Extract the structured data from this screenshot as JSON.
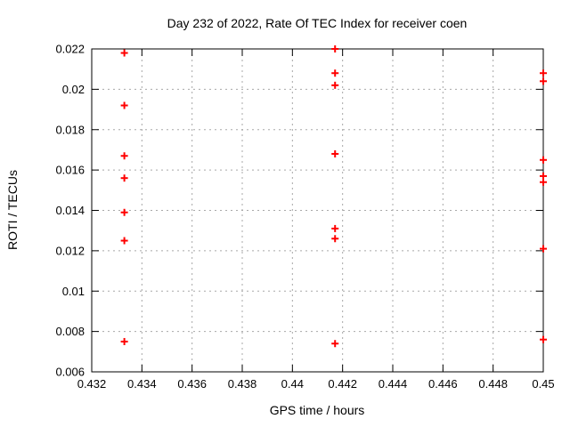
{
  "window": {
    "background": "#ffffff",
    "text_color": "#000000"
  },
  "chart_data": {
    "type": "scatter",
    "title": "Day 232 of 2022, Rate Of TEC Index for receiver coen",
    "xlabel": "GPS time / hours",
    "ylabel": "ROTI / TECUs",
    "xlim": [
      0.432,
      0.45
    ],
    "ylim": [
      0.006,
      0.022
    ],
    "xticks": [
      {
        "v": 0.432,
        "label": "0.432"
      },
      {
        "v": 0.434,
        "label": "0.434"
      },
      {
        "v": 0.436,
        "label": "0.436"
      },
      {
        "v": 0.438,
        "label": "0.438"
      },
      {
        "v": 0.44,
        "label": "0.44"
      },
      {
        "v": 0.442,
        "label": "0.442"
      },
      {
        "v": 0.444,
        "label": "0.444"
      },
      {
        "v": 0.446,
        "label": "0.446"
      },
      {
        "v": 0.448,
        "label": "0.448"
      },
      {
        "v": 0.45,
        "label": "0.45"
      }
    ],
    "yticks": [
      {
        "v": 0.006,
        "label": "0.006"
      },
      {
        "v": 0.008,
        "label": "0.008"
      },
      {
        "v": 0.01,
        "label": "0.01"
      },
      {
        "v": 0.012,
        "label": "0.012"
      },
      {
        "v": 0.014,
        "label": "0.014"
      },
      {
        "v": 0.016,
        "label": "0.016"
      },
      {
        "v": 0.018,
        "label": "0.018"
      },
      {
        "v": 0.02,
        "label": "0.02"
      },
      {
        "v": 0.022,
        "label": "0.022"
      }
    ],
    "grid": true,
    "legend": "none",
    "marker": "plus",
    "marker_color": "#ff0000",
    "grid_color": "#a8a8a8",
    "axis_color": "#000000",
    "series": [
      {
        "name": "ROTI",
        "points": [
          [
            0.4333,
            0.0218
          ],
          [
            0.4333,
            0.0192
          ],
          [
            0.4333,
            0.0167
          ],
          [
            0.4333,
            0.0156
          ],
          [
            0.4333,
            0.0139
          ],
          [
            0.4333,
            0.0125
          ],
          [
            0.4333,
            0.0075
          ],
          [
            0.4417,
            0.022
          ],
          [
            0.4417,
            0.0208
          ],
          [
            0.4417,
            0.0202
          ],
          [
            0.4417,
            0.0168
          ],
          [
            0.4417,
            0.0131
          ],
          [
            0.4417,
            0.0126
          ],
          [
            0.4417,
            0.0074
          ],
          [
            0.45,
            0.0208
          ],
          [
            0.45,
            0.0204
          ],
          [
            0.45,
            0.0165
          ],
          [
            0.45,
            0.0157
          ],
          [
            0.45,
            0.0154
          ],
          [
            0.45,
            0.0121
          ],
          [
            0.45,
            0.0076
          ]
        ]
      }
    ]
  }
}
